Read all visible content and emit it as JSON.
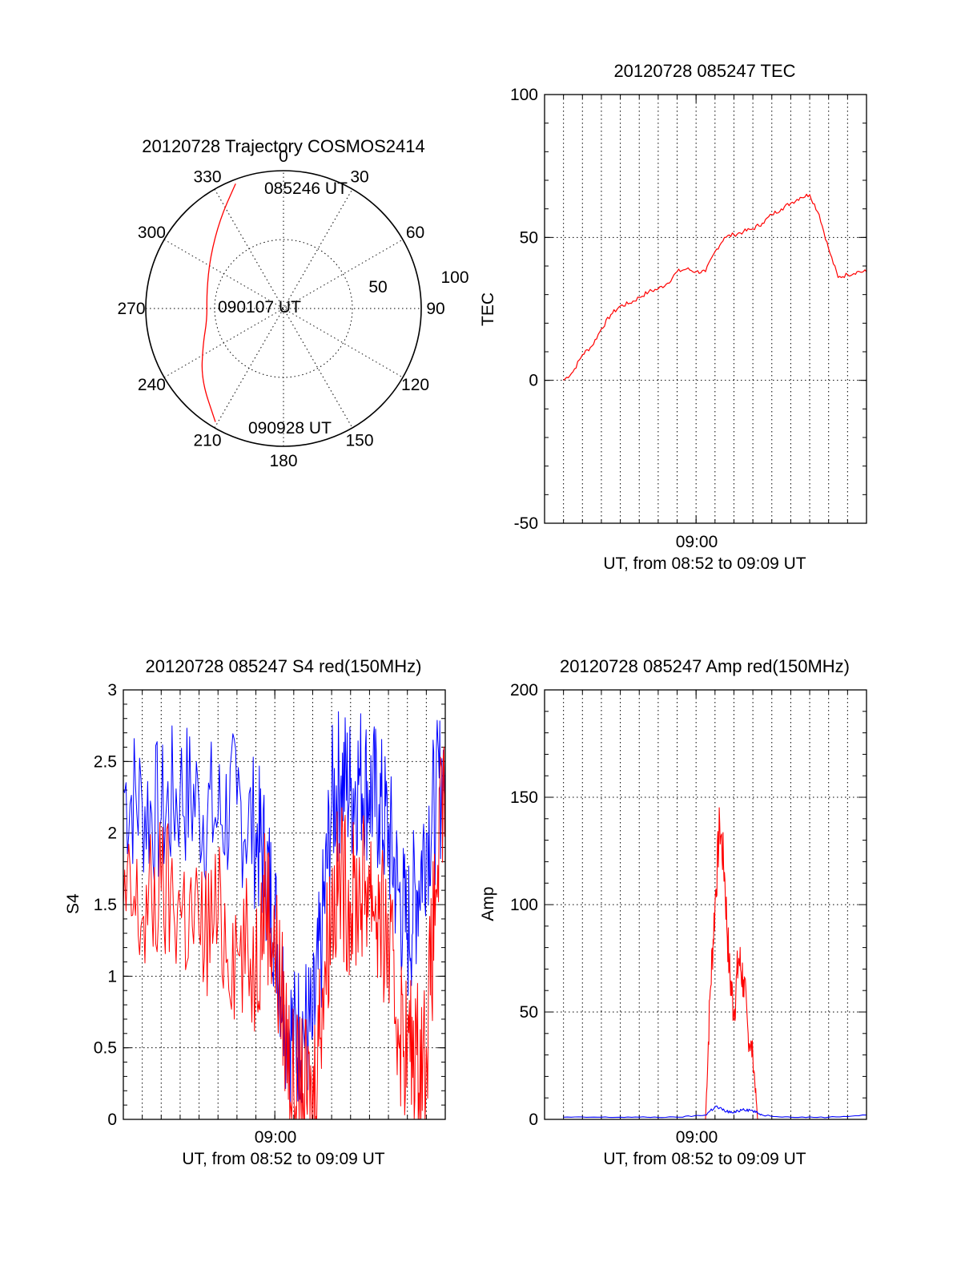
{
  "chart_data": [
    {
      "id": "trajectory",
      "type": "polar",
      "title": "20120728 Trajectory COSMOS2414",
      "azimuth_labels": [
        "0",
        "30",
        "60",
        "90",
        "120",
        "150",
        "180",
        "210",
        "240",
        "270",
        "300",
        "330"
      ],
      "radial_labels": [
        "50",
        "100"
      ],
      "radial_range": [
        0,
        100
      ],
      "start_label": "085246 UT",
      "mid_label": "090107 UT",
      "end_label": "090928 UT",
      "line_color": "#ff0000",
      "track": {
        "azimuth_deg": [
          339,
          325,
          305,
          282,
          262,
          246,
          229,
          211
        ],
        "radius": [
          97,
          80,
          65,
          57,
          56,
          64,
          79,
          96
        ]
      }
    },
    {
      "id": "tec",
      "type": "line",
      "title": "20120728 085247 TEC",
      "ylabel": "TEC",
      "xlabel": "UT, from 08:52 to 09:09 UT",
      "x_tick_labels": [
        "09:00"
      ],
      "y_tick_labels": [
        "-50",
        "0",
        "50",
        "100"
      ],
      "xlim": [
        "08:52:00",
        "09:09:00"
      ],
      "ylim": [
        -50,
        100
      ],
      "series": [
        {
          "color": "#ff0000",
          "x": [
            "08:53:00",
            "08:53:30",
            "08:54:00",
            "08:54:30",
            "08:55:00",
            "08:55:30",
            "08:56:00",
            "08:56:30",
            "08:57:00",
            "08:57:30",
            "08:58:00",
            "08:58:30",
            "08:59:00",
            "08:59:30",
            "09:00:00",
            "09:00:30",
            "09:01:00",
            "09:01:30",
            "09:02:00",
            "09:02:30",
            "09:03:00",
            "09:03:30",
            "09:04:00",
            "09:04:30",
            "09:05:00",
            "09:05:30",
            "09:06:00",
            "09:06:30",
            "09:07:00",
            "09:07:30",
            "09:08:00",
            "09:08:30",
            "09:09:00"
          ],
          "y": [
            0,
            3,
            9,
            12,
            18,
            23,
            26,
            27,
            29,
            31,
            32,
            34,
            38,
            39,
            38,
            38,
            45,
            50,
            51,
            52,
            53,
            55,
            58,
            60,
            62,
            64,
            65,
            58,
            46,
            36,
            37,
            38,
            38
          ]
        }
      ]
    },
    {
      "id": "s4",
      "type": "line",
      "title": "20120728 085247 S4 red(150MHz)",
      "ylabel": "S4",
      "xlabel": "UT, from 08:52 to 09:09 UT",
      "x_tick_labels": [
        "09:00"
      ],
      "y_tick_labels": [
        "0",
        "0.5",
        "1",
        "1.5",
        "2",
        "2.5",
        "3"
      ],
      "xlim": [
        "08:52:00",
        "09:09:00"
      ],
      "ylim": [
        0,
        3
      ],
      "series": [
        {
          "color": "#0000ff",
          "x": [
            "08:52:00",
            "08:53:00",
            "08:54:00",
            "08:55:00",
            "08:56:00",
            "08:57:00",
            "08:58:00",
            "08:59:00",
            "08:59:30",
            "09:00:00",
            "09:00:30",
            "09:01:00",
            "09:01:30",
            "09:02:00",
            "09:02:30",
            "09:03:00",
            "09:03:30",
            "09:04:00",
            "09:04:30",
            "09:05:00",
            "09:05:30",
            "09:06:00",
            "09:06:30",
            "09:07:00",
            "09:07:30",
            "09:08:00",
            "09:08:30",
            "09:09:00"
          ],
          "y": [
            2.3,
            2.2,
            2.1,
            2.3,
            2.2,
            2.1,
            2.2,
            2.0,
            1.8,
            1.4,
            0.8,
            0.55,
            0.65,
            0.6,
            1.3,
            2.2,
            2.4,
            2.3,
            2.4,
            2.3,
            2.2,
            2.0,
            1.6,
            1.3,
            1.6,
            2.0,
            2.2,
            2.5
          ]
        },
        {
          "color": "#ff0000",
          "x": [
            "08:52:00",
            "08:53:00",
            "08:54:00",
            "08:55:00",
            "08:56:00",
            "08:57:00",
            "08:58:00",
            "08:59:00",
            "08:59:30",
            "09:00:00",
            "09:00:30",
            "09:01:00",
            "09:01:30",
            "09:02:00",
            "09:02:30",
            "09:03:00",
            "09:03:30",
            "09:04:00",
            "09:04:30",
            "09:05:00",
            "09:05:30",
            "09:06:00",
            "09:06:30",
            "09:07:00",
            "09:07:30",
            "09:08:00",
            "09:08:30",
            "09:09:00"
          ],
          "y": [
            1.5,
            1.4,
            1.6,
            1.5,
            1.3,
            1.4,
            1.2,
            1.1,
            1.6,
            1.2,
            0.7,
            0.2,
            0.18,
            0.15,
            0.9,
            1.5,
            1.7,
            1.5,
            1.6,
            1.7,
            1.4,
            1.2,
            0.7,
            0.5,
            0.45,
            0.5,
            1.6,
            2.4
          ]
        }
      ]
    },
    {
      "id": "amp",
      "type": "line",
      "title": "20120728 085247 Amp red(150MHz)",
      "ylabel": "Amp",
      "xlabel": "UT, from 08:52 to 09:09 UT",
      "x_tick_labels": [
        "09:00"
      ],
      "y_tick_labels": [
        "0",
        "50",
        "100",
        "150",
        "200"
      ],
      "xlim": [
        "08:52:00",
        "09:09:00"
      ],
      "ylim": [
        0,
        200
      ],
      "series": [
        {
          "color": "#ff0000",
          "x": [
            "09:00:30",
            "09:00:45",
            "09:01:00",
            "09:01:15",
            "09:01:30",
            "09:01:45",
            "09:02:00",
            "09:02:15",
            "09:02:30",
            "09:02:45",
            "09:03:00",
            "09:03:15"
          ],
          "y": [
            0,
            60,
            100,
            138,
            115,
            70,
            50,
            75,
            65,
            40,
            30,
            0
          ]
        },
        {
          "color": "#0000ff",
          "x": [
            "08:53:00",
            "08:55:00",
            "08:57:00",
            "08:59:00",
            "09:00:30",
            "09:01:00",
            "09:01:30",
            "09:02:00",
            "09:02:30",
            "09:03:00",
            "09:03:30",
            "09:05:00",
            "09:07:00",
            "09:09:00"
          ],
          "y": [
            1,
            1,
            1,
            1,
            2,
            6,
            4,
            3,
            5,
            4,
            2,
            1,
            1,
            2
          ]
        }
      ]
    }
  ]
}
